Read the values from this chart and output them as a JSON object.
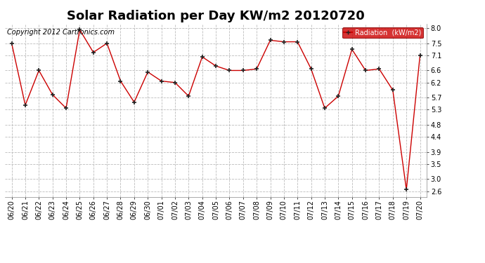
{
  "title": "Solar Radiation per Day KW/m2 20120720",
  "copyright_text": "Copyright 2012 Cartronics.com",
  "legend_label": "Radiation  (kW/m2)",
  "dates": [
    "06/20",
    "06/21",
    "06/22",
    "06/23",
    "06/24",
    "06/25",
    "06/26",
    "06/27",
    "06/28",
    "06/29",
    "06/30",
    "07/01",
    "07/02",
    "07/03",
    "07/04",
    "07/05",
    "07/06",
    "07/07",
    "07/08",
    "07/09",
    "07/10",
    "07/11",
    "07/12",
    "07/13",
    "07/14",
    "07/15",
    "07/16",
    "07/17",
    "07/18",
    "07/19",
    "07/20"
  ],
  "values": [
    7.5,
    5.45,
    6.6,
    5.8,
    5.35,
    7.95,
    7.2,
    7.5,
    6.25,
    5.55,
    6.55,
    6.25,
    6.2,
    5.75,
    7.05,
    6.75,
    6.6,
    6.6,
    6.65,
    7.6,
    7.55,
    7.55,
    6.65,
    5.35,
    5.75,
    7.3,
    6.6,
    6.65,
    5.95,
    2.65,
    7.1
  ],
  "line_color": "#cc0000",
  "marker_color": "#222222",
  "bg_color": "#ffffff",
  "plot_bg_color": "#ffffff",
  "grid_color": "#bbbbbb",
  "yticks": [
    2.6,
    3.0,
    3.5,
    3.9,
    4.4,
    4.8,
    5.3,
    5.7,
    6.2,
    6.6,
    7.1,
    7.5,
    8.0
  ],
  "ylim": [
    2.4,
    8.15
  ],
  "legend_bg": "#cc0000",
  "legend_text_color": "#ffffff",
  "title_fontsize": 13,
  "tick_fontsize": 7,
  "copyright_fontsize": 7
}
